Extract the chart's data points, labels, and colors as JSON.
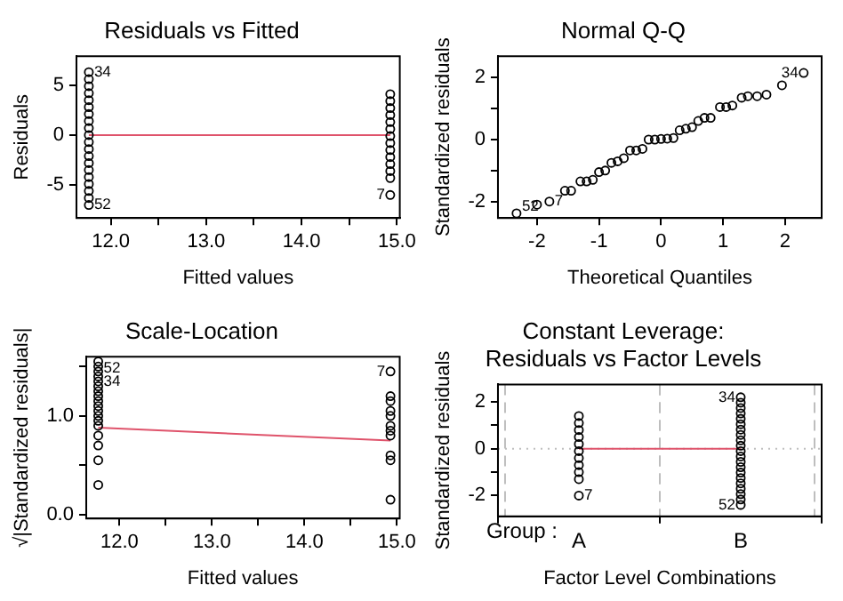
{
  "chart_data": [
    {
      "type": "scatter",
      "title": "Residuals vs Fitted",
      "xlabel": "Fitted values",
      "ylabel": "Residuals",
      "xlim": [
        11.64,
        15.03
      ],
      "xticks": [
        {
          "value": 12,
          "label": "12.0"
        },
        {
          "value": 12.5,
          "label": null
        },
        {
          "value": 13,
          "label": "13.0"
        },
        {
          "value": 13.5,
          "label": null
        },
        {
          "value": 14,
          "label": "14.0"
        },
        {
          "value": 14.5,
          "label": null
        },
        {
          "value": 15,
          "label": "15.0"
        }
      ],
      "ylim": [
        -8.3,
        7.9
      ],
      "yticks": [
        -5,
        0,
        5
      ],
      "marker": "circle",
      "legend": false,
      "grid": false,
      "series": [
        {
          "color": "#000000",
          "x": [
            11.77,
            11.77,
            11.77,
            11.77,
            11.77,
            11.77,
            11.77,
            11.77,
            11.77,
            11.77,
            11.77,
            11.77,
            11.77,
            11.77,
            11.77,
            11.77,
            11.77,
            11.77,
            11.77,
            11.77,
            14.93,
            14.93,
            14.93,
            14.93,
            14.93,
            14.93,
            14.93,
            14.93,
            14.93,
            14.93,
            14.93,
            14.93,
            14.93,
            14.93
          ],
          "values": [
            6.3,
            5.6,
            4.9,
            4.2,
            3.5,
            2.8,
            2.1,
            1.4,
            0.7,
            0,
            -0.7,
            -1.4,
            -2.1,
            -2.8,
            -3.5,
            -4.2,
            -4.9,
            -5.6,
            -6.3,
            -7.0,
            4.1,
            3.4,
            2.7,
            2.0,
            1.3,
            0.6,
            -0.1,
            -0.8,
            -1.5,
            -2.2,
            -2.9,
            -3.6,
            -4.3,
            -6.0
          ]
        },
        {
          "type": "line",
          "marker": "none",
          "color": "#df536b",
          "x": [
            11.77,
            14.93
          ],
          "values": [
            0,
            0
          ]
        }
      ],
      "annotations": [
        {
          "text": "34",
          "x": 11.77,
          "y": 6.3
        },
        {
          "text": "52",
          "x": 11.77,
          "y": -7.0
        },
        {
          "text": "7",
          "x": 14.93,
          "y": -6.0
        }
      ]
    },
    {
      "type": "scatter",
      "title": "Normal Q-Q",
      "xlabel": "Theoretical Quantiles",
      "ylabel": "Standardized residuals",
      "xlim": [
        -2.63,
        2.59
      ],
      "xticks": [
        -2,
        -1,
        0,
        1,
        2
      ],
      "ylim": [
        -2.53,
        2.69
      ],
      "yticks": [
        -2,
        {
          "value": -1,
          "label": null
        },
        0,
        {
          "value": 1,
          "label": null
        },
        2
      ],
      "marker": "circle",
      "legend": false,
      "grid": false,
      "series": [
        {
          "color": "#000000",
          "x": [
            -2.33,
            -2.0,
            -1.8,
            -1.55,
            -1.45,
            -1.3,
            -1.2,
            -1.1,
            -1.0,
            -0.9,
            -0.8,
            -0.7,
            -0.6,
            -0.5,
            -0.4,
            -0.3,
            -0.2,
            -0.1,
            0,
            0.1,
            0.2,
            0.3,
            0.4,
            0.5,
            0.6,
            0.7,
            0.8,
            0.95,
            1.05,
            1.15,
            1.3,
            1.4,
            1.55,
            1.7,
            1.95,
            2.3
          ],
          "values": [
            -2.38,
            -2.1,
            -2.0,
            -1.65,
            -1.65,
            -1.35,
            -1.35,
            -1.3,
            -1.05,
            -1.0,
            -0.75,
            -0.7,
            -0.6,
            -0.35,
            -0.35,
            -0.3,
            0.0,
            0.0,
            0.02,
            0.03,
            0.05,
            0.3,
            0.35,
            0.4,
            0.6,
            0.7,
            0.7,
            1.05,
            1.05,
            1.1,
            1.35,
            1.4,
            1.4,
            1.45,
            1.75,
            2.15
          ]
        }
      ],
      "annotations": [
        {
          "text": "52",
          "x": -2.33,
          "y": -2.38
        },
        {
          "text": "7",
          "x": -1.8,
          "y": -2.0
        },
        {
          "text": "34",
          "x": 2.3,
          "y": 2.15
        }
      ]
    },
    {
      "type": "scatter",
      "title": "Scale-Location",
      "xlabel": "Fitted values",
      "ylabel": "√|Standardized residuals|",
      "xlim": [
        11.64,
        15.03
      ],
      "xticks": [
        {
          "value": 12,
          "label": "12.0"
        },
        {
          "value": 12.5,
          "label": null
        },
        {
          "value": 13,
          "label": "13.0"
        },
        {
          "value": 13.5,
          "label": null
        },
        {
          "value": 14,
          "label": "14.0"
        },
        {
          "value": 14.5,
          "label": null
        },
        {
          "value": 15,
          "label": "15.0"
        }
      ],
      "ylim": [
        -0.04,
        1.6
      ],
      "yticks": [
        {
          "value": 0,
          "label": "0.0"
        },
        {
          "value": 0.5,
          "label": null
        },
        {
          "value": 1,
          "label": "1.0"
        },
        {
          "value": 1.5,
          "label": null
        }
      ],
      "marker": "circle",
      "legend": false,
      "grid": false,
      "series": [
        {
          "color": "#000000",
          "x": [
            11.77,
            11.77,
            11.77,
            11.77,
            11.77,
            11.77,
            11.77,
            11.77,
            11.77,
            11.77,
            11.77,
            11.77,
            11.77,
            11.77,
            11.77,
            11.77,
            11.77,
            11.77,
            14.93,
            14.93,
            14.93,
            14.93,
            14.93,
            14.93,
            14.93,
            14.93,
            14.93,
            14.93,
            14.93
          ],
          "values": [
            0.3,
            0.55,
            0.7,
            0.8,
            0.9,
            0.95,
            1.0,
            1.05,
            1.1,
            1.15,
            1.2,
            1.25,
            1.3,
            1.35,
            1.4,
            1.45,
            1.5,
            1.55,
            0.15,
            0.55,
            0.6,
            0.8,
            0.85,
            0.9,
            1.0,
            1.05,
            1.15,
            1.2,
            1.45
          ]
        },
        {
          "type": "line",
          "marker": "none",
          "color": "#df536b",
          "x": [
            11.77,
            14.93
          ],
          "values": [
            0.88,
            0.75
          ]
        }
      ],
      "annotations": [
        {
          "text": "52",
          "x": 11.77,
          "y": 1.55
        },
        {
          "text": "34",
          "x": 11.77,
          "y": 1.35
        },
        {
          "text": "7",
          "x": 14.93,
          "y": 1.45
        }
      ]
    },
    {
      "type": "scatter",
      "title": "Constant Leverage:\nResiduals vs Factor Levels",
      "xlabel": "Factor Level Combinations",
      "ylabel": "Standardized residuals",
      "categories": [
        "A",
        "B"
      ],
      "ylim": [
        -2.89,
        2.75
      ],
      "yticks": [
        -2,
        {
          "value": -1,
          "label": null
        },
        0,
        {
          "value": 1,
          "label": null
        },
        2
      ],
      "marker": "circle",
      "legend": false,
      "grid": "x",
      "ref_lines": [
        {
          "axis": "y",
          "value": 0,
          "color": "#bebebe",
          "line_style": "dotted"
        }
      ],
      "series": [
        {
          "color": "#000000",
          "x": [
            "A",
            "A",
            "A",
            "A",
            "A",
            "A",
            "A",
            "A",
            "A",
            "A",
            "A",
            "B",
            "B",
            "B",
            "B",
            "B",
            "B",
            "B",
            "B",
            "B",
            "B",
            "B",
            "B",
            "B",
            "B",
            "B",
            "B",
            "B",
            "B",
            "B",
            "B",
            "B"
          ],
          "values": [
            1.4,
            1.1,
            0.8,
            0.5,
            0.2,
            -0.1,
            -0.4,
            -0.7,
            -1.0,
            -1.3,
            -2.0,
            2.2,
            1.97,
            1.74,
            1.51,
            1.28,
            1.05,
            0.82,
            0.59,
            0.36,
            0.13,
            -0.1,
            -0.33,
            -0.56,
            -0.79,
            -1.02,
            -1.25,
            -1.48,
            -1.71,
            -1.94,
            -2.17,
            -2.4
          ]
        },
        {
          "type": "line",
          "marker": "none",
          "color": "#df536b",
          "x": [
            "A",
            "B"
          ],
          "values": [
            0,
            0
          ]
        }
      ],
      "annotations": [
        "Group :",
        {
          "text": "7",
          "x": "A",
          "y": -2.0
        },
        {
          "text": "34",
          "x": "B",
          "y": 2.2
        },
        {
          "text": "52",
          "x": "B",
          "y": -2.4
        }
      ]
    }
  ]
}
